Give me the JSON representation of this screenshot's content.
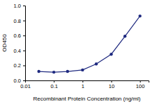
{
  "chart_data": {
    "type": "line",
    "x_label": "Recombinant Protein Concentration (ng/ml)",
    "y_label": "OD450",
    "x": [
      0.03,
      0.1,
      0.3,
      1,
      3,
      10,
      30,
      100
    ],
    "values": [
      0.12,
      0.11,
      0.12,
      0.14,
      0.22,
      0.35,
      0.59,
      0.86
    ],
    "color": "#1f2a80",
    "marker": "circle",
    "log": "x",
    "grid": false,
    "xlim": [
      0.01,
      200
    ],
    "xticks": [
      0.01,
      0.1,
      1,
      10,
      100
    ],
    "ylim": [
      0,
      1
    ],
    "yticks": [
      {
        "value": 0,
        "label": "0.0"
      },
      {
        "value": 0.2,
        "label": "0.2"
      },
      {
        "value": 0.4,
        "label": "0.4"
      },
      {
        "value": 0.6,
        "label": "0.6"
      },
      {
        "value": 0.8,
        "label": "0.8"
      },
      {
        "value": 1,
        "label": "1.0"
      }
    ]
  }
}
